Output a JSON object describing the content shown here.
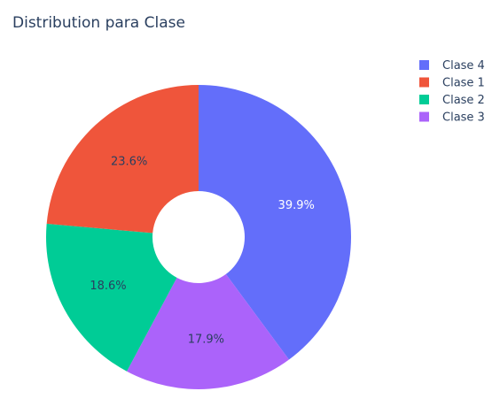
{
  "chart_data": {
    "type": "pie",
    "title": "Distribution para Clase",
    "hole": true,
    "legend_position": "top-right",
    "slices": [
      {
        "label": "Clase 4",
        "percent": 39.9,
        "display": "39.9%",
        "color": "#636efa",
        "text_color": "#ffffff"
      },
      {
        "label": "Clase 3",
        "percent": 17.9,
        "display": "17.9%",
        "color": "#ab63fa",
        "text_color": "#2a3f5f"
      },
      {
        "label": "Clase 2",
        "percent": 18.6,
        "display": "18.6%",
        "color": "#00cc96",
        "text_color": "#2a3f5f"
      },
      {
        "label": "Clase 1",
        "percent": 23.6,
        "display": "23.6%",
        "color": "#ef553b",
        "text_color": "#2a3f5f"
      }
    ],
    "legend": [
      {
        "label": "Clase 4",
        "color": "#636efa"
      },
      {
        "label": "Clase 1",
        "color": "#ef553b"
      },
      {
        "label": "Clase 2",
        "color": "#00cc96"
      },
      {
        "label": "Clase 3",
        "color": "#ab63fa"
      }
    ]
  }
}
